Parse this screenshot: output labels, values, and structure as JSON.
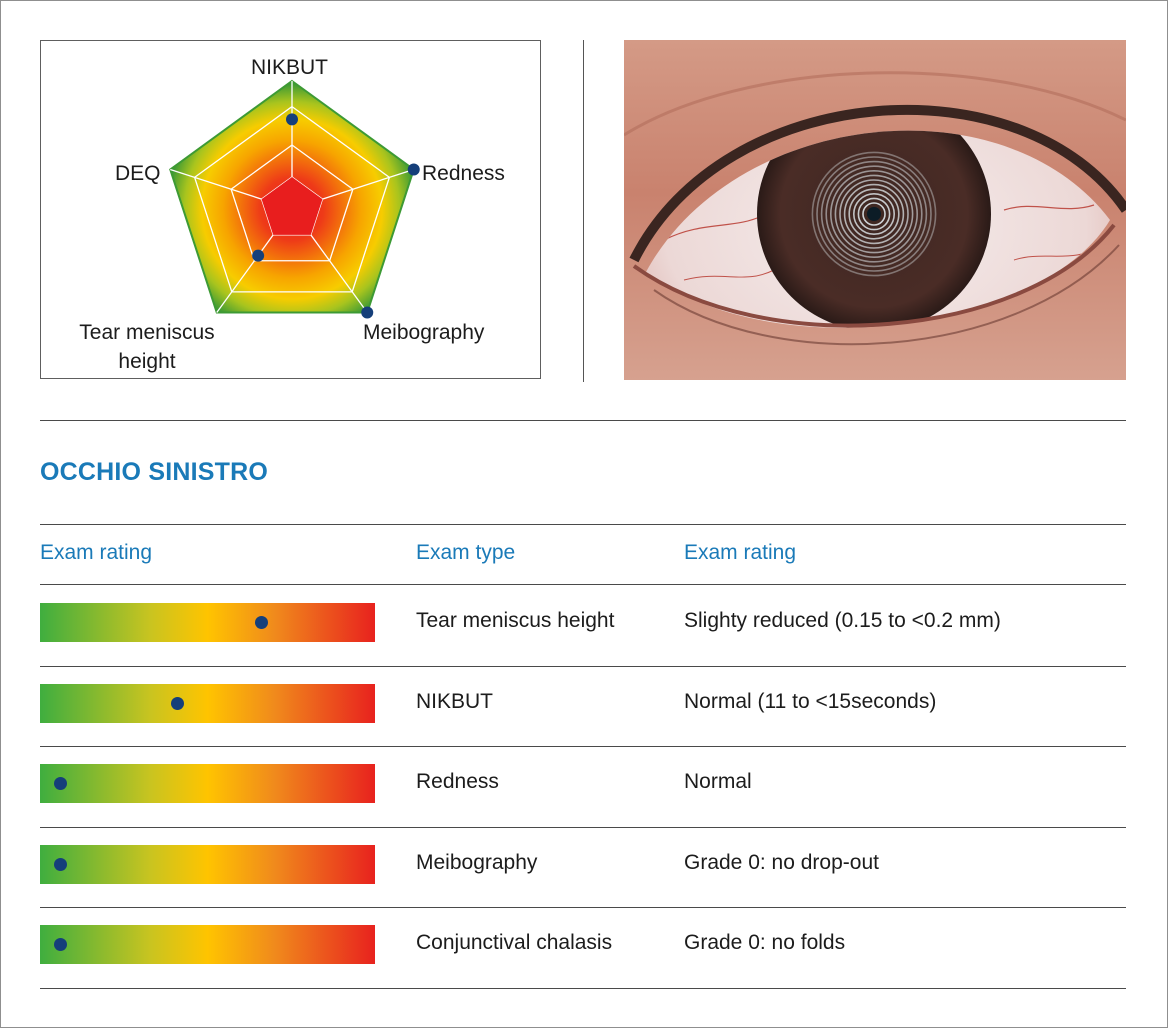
{
  "radar": {
    "labels": {
      "nikbut": "NIKBUT",
      "redness": "Redness",
      "meibography": "Meibography",
      "tear_line1": "Tear meniscus",
      "tear_line2": "height",
      "deq": "DEQ"
    },
    "scores": {
      "nikbut": 0.7,
      "redness": 1.0,
      "meibography": 1.0,
      "tear": 0.45
    },
    "colors": {
      "outer": "#3d9a34",
      "mid": "#f7c800",
      "inner": "#e81e1e",
      "dot": "#153f7a"
    }
  },
  "section": {
    "title": "OCCHIO SINISTRO"
  },
  "table": {
    "headers": [
      "Exam rating",
      "Exam type",
      "Exam rating"
    ],
    "rows": [
      {
        "type": "Tear meniscus height",
        "rating": "Slighty reduced (0.15 to <0.2 mm)",
        "level": 0.66
      },
      {
        "type": "NIKBUT",
        "rating": "Normal (11 to <15seconds)",
        "level": 0.41
      },
      {
        "type": "Redness",
        "rating": "Normal",
        "level": 0.06
      },
      {
        "type": "Meibography",
        "rating": "Grade 0: no drop-out",
        "level": 0.06
      },
      {
        "type": "Conjunctival chalasis",
        "rating": "Grade 0: no folds",
        "level": 0.06
      }
    ]
  }
}
